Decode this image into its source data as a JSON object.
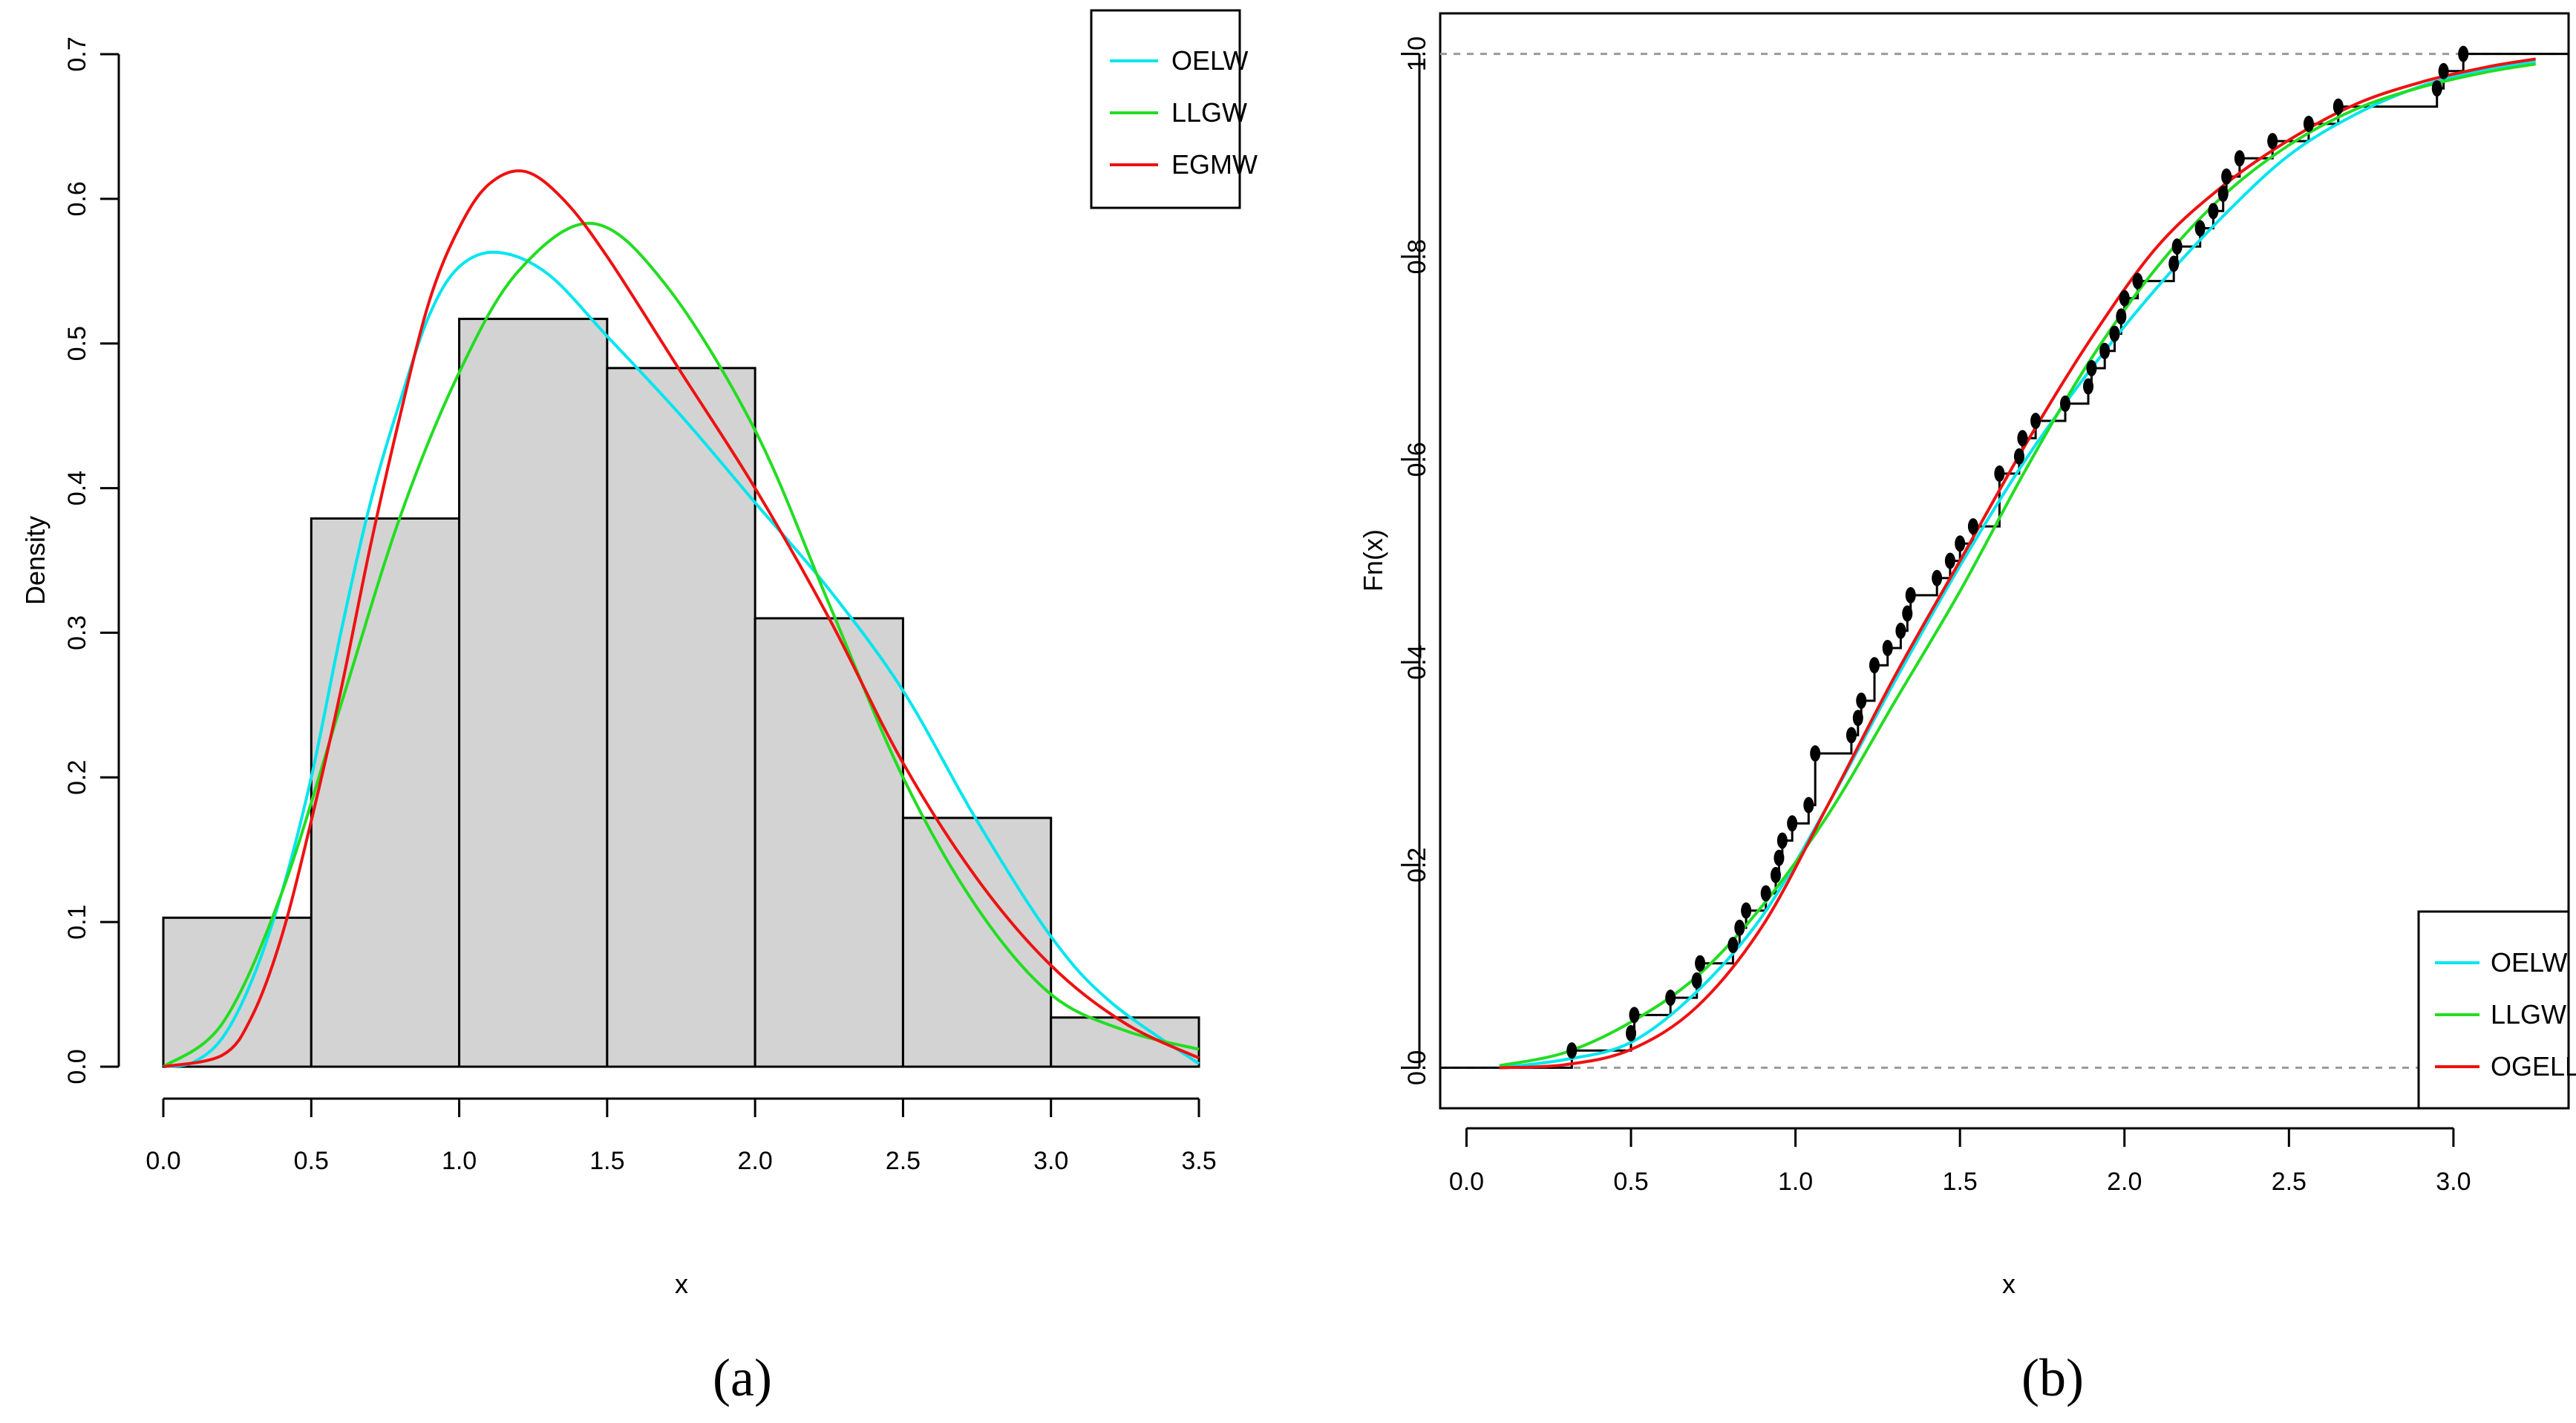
{
  "chart_data": [
    {
      "type": "histogram",
      "panel_caption": "(a)",
      "title": "",
      "xlabel": "x",
      "ylabel": "Density",
      "xlim": [
        0,
        3.5
      ],
      "ylim": [
        0,
        0.7
      ],
      "x_ticks": [
        "0.0",
        "0.5",
        "1.0",
        "1.5",
        "2.0",
        "2.5",
        "3.0",
        "3.5"
      ],
      "y_ticks": [
        "0.0",
        "0.1",
        "0.2",
        "0.3",
        "0.4",
        "0.5",
        "0.6",
        "0.7"
      ],
      "bins": [
        {
          "from": 0.0,
          "to": 0.5,
          "density": 0.103
        },
        {
          "from": 0.5,
          "to": 1.0,
          "density": 0.379
        },
        {
          "from": 1.0,
          "to": 1.5,
          "density": 0.517
        },
        {
          "from": 1.5,
          "to": 2.0,
          "density": 0.483
        },
        {
          "from": 2.0,
          "to": 2.5,
          "density": 0.31
        },
        {
          "from": 2.5,
          "to": 3.0,
          "density": 0.172
        },
        {
          "from": 3.0,
          "to": 3.5,
          "density": 0.034
        }
      ],
      "legend_position": "top-right",
      "series": [
        {
          "name": "OELW",
          "color": "#00e5ee",
          "x": [
            0,
            0.1,
            0.2,
            0.3,
            0.4,
            0.5,
            0.6,
            0.7,
            0.8,
            0.9,
            1.0,
            1.13,
            1.3,
            1.5,
            1.75,
            2.0,
            2.25,
            2.5,
            2.75,
            3.0,
            3.2,
            3.5
          ],
          "y": [
            0,
            0.003,
            0.02,
            0.06,
            0.12,
            0.2,
            0.3,
            0.39,
            0.46,
            0.52,
            0.553,
            0.563,
            0.548,
            0.505,
            0.45,
            0.39,
            0.33,
            0.26,
            0.17,
            0.09,
            0.045,
            0.002
          ]
        },
        {
          "name": "LLGW",
          "color": "#22dd22",
          "x": [
            0,
            0.2,
            0.4,
            0.6,
            0.8,
            1.0,
            1.2,
            1.45,
            1.7,
            2.0,
            2.25,
            2.5,
            2.75,
            3.0,
            3.25,
            3.5
          ],
          "y": [
            0,
            0.03,
            0.12,
            0.25,
            0.38,
            0.48,
            0.55,
            0.583,
            0.54,
            0.44,
            0.32,
            0.2,
            0.11,
            0.05,
            0.025,
            0.012
          ]
        },
        {
          "name": "EGMW",
          "color": "#ee1111",
          "x": [
            0,
            0.2,
            0.3,
            0.4,
            0.5,
            0.6,
            0.7,
            0.8,
            0.9,
            1.0,
            1.1,
            1.22,
            1.35,
            1.5,
            1.75,
            2.0,
            2.25,
            2.5,
            2.75,
            3.0,
            3.25,
            3.5
          ],
          "y": [
            0,
            0.008,
            0.035,
            0.09,
            0.17,
            0.26,
            0.36,
            0.45,
            0.53,
            0.58,
            0.61,
            0.619,
            0.6,
            0.56,
            0.48,
            0.4,
            0.31,
            0.21,
            0.13,
            0.07,
            0.03,
            0.006
          ]
        }
      ]
    },
    {
      "type": "ecdf",
      "panel_caption": "(b)",
      "title": "",
      "xlabel": "x",
      "ylabel": "Fn(x)",
      "xlim": [
        -0.08,
        3.35
      ],
      "ylim": [
        -0.04,
        1.04
      ],
      "x_ticks": [
        "0.0",
        "0.5",
        "1.0",
        "1.5",
        "2.0",
        "2.5",
        "3.0"
      ],
      "y_ticks": [
        "0.0",
        "0.2",
        "0.4",
        "0.6",
        "0.8",
        "1.0"
      ],
      "reference_lines": [
        0,
        1
      ],
      "legend_position": "bottom-right",
      "ecdf_points": [
        [
          0.32,
          0.017
        ],
        [
          0.5,
          0.034
        ],
        [
          0.51,
          0.052
        ],
        [
          0.62,
          0.069
        ],
        [
          0.7,
          0.086
        ],
        [
          0.71,
          0.103
        ],
        [
          0.81,
          0.121
        ],
        [
          0.83,
          0.138
        ],
        [
          0.85,
          0.155
        ],
        [
          0.91,
          0.172
        ],
        [
          0.94,
          0.19
        ],
        [
          0.95,
          0.207
        ],
        [
          0.96,
          0.224
        ],
        [
          0.99,
          0.241
        ],
        [
          1.04,
          0.259
        ],
        [
          1.06,
          0.31
        ],
        [
          1.17,
          0.328
        ],
        [
          1.19,
          0.345
        ],
        [
          1.2,
          0.362
        ],
        [
          1.24,
          0.397
        ],
        [
          1.28,
          0.414
        ],
        [
          1.32,
          0.431
        ],
        [
          1.34,
          0.448
        ],
        [
          1.35,
          0.466
        ],
        [
          1.43,
          0.483
        ],
        [
          1.47,
          0.5
        ],
        [
          1.5,
          0.517
        ],
        [
          1.54,
          0.534
        ],
        [
          1.62,
          0.586
        ],
        [
          1.68,
          0.603
        ],
        [
          1.69,
          0.621
        ],
        [
          1.73,
          0.638
        ],
        [
          1.82,
          0.655
        ],
        [
          1.89,
          0.672
        ],
        [
          1.9,
          0.69
        ],
        [
          1.94,
          0.707
        ],
        [
          1.97,
          0.724
        ],
        [
          1.99,
          0.741
        ],
        [
          2.0,
          0.759
        ],
        [
          2.04,
          0.776
        ],
        [
          2.15,
          0.793
        ],
        [
          2.16,
          0.81
        ],
        [
          2.23,
          0.828
        ],
        [
          2.27,
          0.845
        ],
        [
          2.3,
          0.862
        ],
        [
          2.31,
          0.879
        ],
        [
          2.35,
          0.897
        ],
        [
          2.45,
          0.914
        ],
        [
          2.56,
          0.931
        ],
        [
          2.65,
          0.948
        ],
        [
          2.95,
          0.966
        ],
        [
          2.97,
          0.983
        ],
        [
          3.03,
          1.0
        ]
      ],
      "series": [
        {
          "name": "OELW",
          "color": "#00e5ee",
          "x": [
            0.1,
            0.3,
            0.5,
            0.7,
            0.9,
            1.1,
            1.3,
            1.5,
            1.7,
            1.9,
            2.1,
            2.3,
            2.5,
            2.7,
            2.9,
            3.1,
            3.25
          ],
          "y": [
            0.0,
            0.008,
            0.025,
            0.075,
            0.15,
            0.26,
            0.38,
            0.495,
            0.6,
            0.69,
            0.77,
            0.84,
            0.9,
            0.94,
            0.968,
            0.985,
            0.992
          ]
        },
        {
          "name": "LLGW",
          "color": "#22dd22",
          "x": [
            0.1,
            0.3,
            0.5,
            0.7,
            0.9,
            1.1,
            1.3,
            1.5,
            1.7,
            1.9,
            2.1,
            2.3,
            2.5,
            2.7,
            2.9,
            3.1,
            3.25
          ],
          "y": [
            0.002,
            0.015,
            0.045,
            0.09,
            0.16,
            0.25,
            0.36,
            0.47,
            0.59,
            0.7,
            0.79,
            0.86,
            0.91,
            0.945,
            0.967,
            0.982,
            0.99
          ]
        },
        {
          "name": "OGELL",
          "color": "#ee1111",
          "x": [
            0.1,
            0.3,
            0.5,
            0.7,
            0.9,
            1.1,
            1.3,
            1.5,
            1.7,
            1.9,
            2.1,
            2.3,
            2.5,
            2.7,
            2.9,
            3.1,
            3.25
          ],
          "y": [
            0.0,
            0.003,
            0.018,
            0.06,
            0.14,
            0.26,
            0.385,
            0.5,
            0.615,
            0.72,
            0.81,
            0.87,
            0.915,
            0.95,
            0.972,
            0.987,
            0.995
          ]
        }
      ]
    }
  ]
}
